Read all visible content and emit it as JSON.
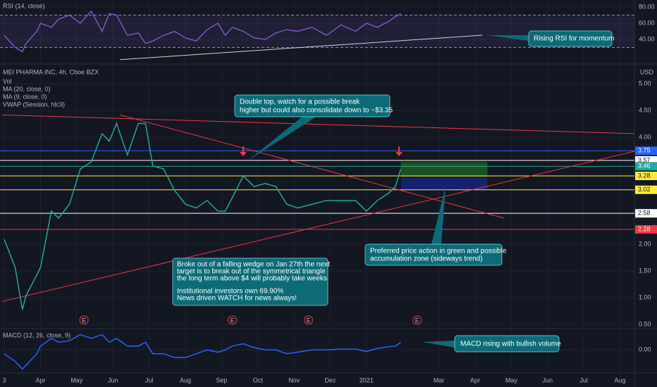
{
  "chart_data": [
    {
      "type": "line",
      "title": "RSI (14, close)",
      "color": "#7e57c2",
      "x": [
        0,
        0.3,
        0.5,
        0.6,
        0.9,
        1.0,
        1.3,
        1.5,
        1.8,
        2.1,
        2.4,
        2.7,
        2.9,
        3.1,
        3.4,
        3.7,
        3.9,
        4.1,
        4.4,
        4.7,
        5.0,
        5.3,
        5.6,
        5.9,
        6.1,
        6.3,
        6.6,
        6.9,
        7.2,
        7.5,
        7.8,
        8.1,
        8.5,
        8.9,
        9.3,
        9.7,
        10.0,
        10.3,
        10.6,
        10.8,
        10.95
      ],
      "values": [
        45,
        30,
        25,
        35,
        50,
        60,
        55,
        65,
        70,
        60,
        75,
        50,
        72,
        70,
        45,
        48,
        35,
        38,
        45,
        50,
        42,
        38,
        52,
        60,
        45,
        55,
        50,
        42,
        40,
        48,
        52,
        50,
        55,
        45,
        58,
        50,
        60,
        55,
        62,
        68,
        72
      ],
      "ylim": [
        12.2,
        88.7
      ],
      "yticks": [
        {
          "value": 80,
          "label": "80.00"
        },
        {
          "value": 60,
          "label": "60.00"
        },
        {
          "value": 40,
          "label": "40.00"
        }
      ],
      "bands": [
        70,
        30
      ],
      "trendlines": [
        {
          "x": [
            3.2,
            13.2
          ],
          "y": [
            15,
            45.2
          ],
          "color": "#d1d4dc"
        }
      ],
      "annotations": [
        {
          "lines": [
            "Rising RSI for momentum"
          ]
        }
      ]
    },
    {
      "type": "line",
      "title": "MEI PHARMA INC, 4h, Cboe BZX",
      "legend": [
        "Vol",
        "MA (20, close, 0)",
        "MA (9, close, 0)",
        "VWAP (Session, hlc3)"
      ],
      "currency": "USD",
      "color": "#26a69a",
      "x": [
        0,
        0.3,
        0.5,
        0.6,
        0.9,
        1.0,
        1.3,
        1.5,
        1.8,
        2.1,
        2.4,
        2.7,
        2.9,
        3.1,
        3.4,
        3.7,
        3.9,
        4.1,
        4.4,
        4.7,
        5.0,
        5.3,
        5.6,
        5.9,
        6.1,
        6.3,
        6.6,
        6.9,
        7.2,
        7.5,
        7.8,
        8.1,
        8.5,
        8.9,
        9.3,
        9.7,
        10.0,
        10.3,
        10.6,
        10.8,
        10.95
      ],
      "values": [
        2.09,
        1.57,
        0.78,
        1.04,
        1.43,
        1.57,
        2.62,
        2.49,
        2.75,
        3.41,
        3.54,
        4.07,
        3.93,
        4.26,
        3.67,
        4.26,
        4.26,
        3.47,
        3.41,
        3.01,
        2.75,
        2.68,
        2.82,
        2.62,
        2.62,
        2.88,
        3.28,
        3.08,
        3.14,
        3.08,
        2.75,
        2.68,
        2.75,
        2.82,
        2.82,
        2.82,
        2.62,
        2.82,
        2.95,
        3.08,
        3.41
      ],
      "ylim": [
        0.45,
        5.32
      ],
      "yticks": [
        {
          "value": 5,
          "label": "5.00"
        },
        {
          "value": 4.5,
          "label": "4.50"
        },
        {
          "value": 4,
          "label": "4.00"
        },
        {
          "value": 2,
          "label": "2.00"
        },
        {
          "value": 1.5,
          "label": "1.50"
        },
        {
          "value": 1,
          "label": "1.00"
        },
        {
          "value": 0.5,
          "label": "0.50"
        }
      ],
      "levels": [
        {
          "value": 3.75,
          "label": "3.75",
          "color": "#2962ff"
        },
        {
          "value": 3.57,
          "label": "3.57",
          "color": "#ffffff"
        },
        {
          "value": 3.46,
          "label": "3.46",
          "color": "#26a69a"
        },
        {
          "value": 3.28,
          "label": "3.28",
          "color": "#ffeb3b"
        },
        {
          "value": 3.02,
          "label": "3.02",
          "color": "#ffeb3b"
        },
        {
          "value": 2.58,
          "label": "2.58",
          "color": "#ffffff"
        },
        {
          "value": 2.28,
          "label": "2.28",
          "color": "#f23645"
        }
      ],
      "trendlines": [
        {
          "x": [
            3.2,
            13.8
          ],
          "y": [
            4.42,
            2.49
          ],
          "color": "#f23645"
        },
        {
          "x": [
            -0.06,
            17.4
          ],
          "y": [
            4.42,
            4.07
          ],
          "color": "#f23645"
        },
        {
          "x": [
            -0.06,
            17.4
          ],
          "y": [
            0.93,
            3.74
          ],
          "color": "#f23645"
        }
      ],
      "zones": [
        {
          "x": [
            10.95,
            13.34
          ],
          "y": [
            3.54,
            3.26
          ],
          "color": "#1b5e20"
        },
        {
          "x": [
            10.95,
            13.34
          ],
          "y": [
            3.24,
            3.01
          ],
          "color": "#1a237e"
        }
      ],
      "earnings": {
        "x": [
          2.2,
          6.3,
          8.4,
          11.4
        ],
        "label": "E"
      },
      "annotations": [
        {
          "lines": [
            "Double top, watch for a possible break",
            "higher but could also consolidate down to ~$3.35"
          ]
        },
        {
          "lines": [
            "Broke out of a falling wedge on Jan 27th the next",
            "target is to break out of the symmetrical triangle",
            "the long term above $4 will probably take weeks",
            "Institutional investors own 69.90%",
            "News driven WATCH for news always!"
          ]
        },
        {
          "lines": [
            "Preferred price action in green and possible",
            "accumulation zone (sideways trend)"
          ]
        }
      ]
    },
    {
      "type": "line",
      "title": "MACD (12, 26, close, 9)",
      "color": "#2962ff",
      "x": [
        0,
        0.3,
        0.5,
        0.6,
        0.9,
        1.0,
        1.3,
        1.5,
        1.8,
        2.1,
        2.4,
        2.7,
        2.9,
        3.1,
        3.4,
        3.7,
        3.9,
        4.1,
        4.4,
        4.7,
        5.0,
        5.3,
        5.6,
        5.9,
        6.1,
        6.3,
        6.6,
        6.9,
        7.2,
        7.5,
        7.8,
        8.1,
        8.5,
        8.9,
        9.3,
        9.7,
        10.0,
        10.3,
        10.6,
        10.8,
        10.95
      ],
      "values": [
        -0.05,
        -0.15,
        -0.25,
        -0.2,
        -0.05,
        0.05,
        0.15,
        0.1,
        0.12,
        0.2,
        0.15,
        0.2,
        0.1,
        0.15,
        0.05,
        0.05,
        0.1,
        -0.05,
        -0.05,
        -0.1,
        -0.1,
        -0.05,
        0,
        -0.03,
        0,
        0.05,
        0.08,
        0.03,
        0,
        0,
        -0.05,
        -0.03,
        0,
        0,
        0.01,
        0.01,
        -0.02,
        0.02,
        0.04,
        0.05,
        0.1
      ],
      "ylim": [
        -0.3,
        0.25
      ],
      "yticks": [
        {
          "value": 0,
          "label": "0.00"
        }
      ],
      "annotations": [
        {
          "lines": [
            "MACD rising with bullish volume"
          ]
        }
      ]
    }
  ],
  "x_axis": {
    "xlim": [
      -0.06,
      17.4
    ],
    "xticks": [
      {
        "value": 0,
        "label": "3"
      },
      {
        "value": 1,
        "label": "Apr"
      },
      {
        "value": 2,
        "label": "May"
      },
      {
        "value": 3,
        "label": "Jun"
      },
      {
        "value": 4,
        "label": "Jul"
      },
      {
        "value": 5,
        "label": "Aug"
      },
      {
        "value": 6,
        "label": "Sep"
      },
      {
        "value": 7,
        "label": "Oct"
      },
      {
        "value": 8,
        "label": "Nov"
      },
      {
        "value": 9,
        "label": "Dec"
      },
      {
        "value": 10,
        "label": "2021"
      },
      {
        "value": 12,
        "label": "Mar"
      },
      {
        "value": 13,
        "label": "Apr"
      },
      {
        "value": 14,
        "label": "May"
      },
      {
        "value": 15,
        "label": "Jun"
      },
      {
        "value": 16,
        "label": "Jul"
      },
      {
        "value": 17,
        "label": "Aug"
      }
    ]
  }
}
